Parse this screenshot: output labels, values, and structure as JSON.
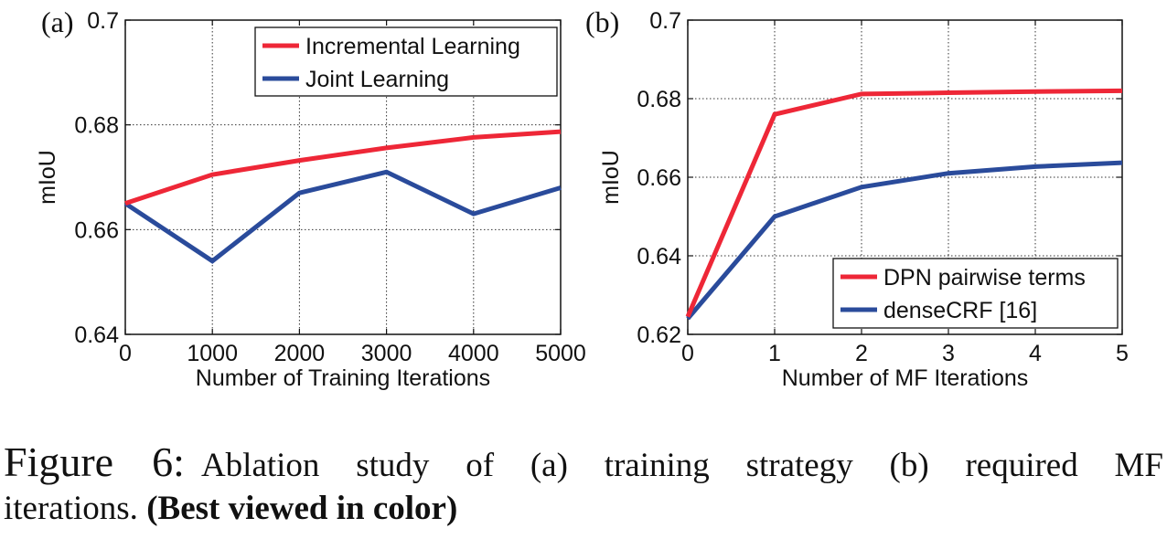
{
  "chart_data": [
    {
      "panel_label": "(a)",
      "type": "line",
      "xlabel": "Number of Training Iterations",
      "ylabel": "mIoU",
      "x": [
        0,
        1000,
        2000,
        3000,
        4000,
        5000
      ],
      "xlim": [
        0,
        5000
      ],
      "ylim": [
        0.64,
        0.7
      ],
      "xticks": [
        "0",
        "1000",
        "2000",
        "3000",
        "4000",
        "5000"
      ],
      "yticks": [
        "0.64",
        "0.66",
        "0.68",
        "0.7"
      ],
      "grid": true,
      "legend_position": "top-right",
      "series": [
        {
          "name": "Incremental Learning",
          "color": "#ee2737",
          "values": [
            0.665,
            0.6705,
            0.6732,
            0.6756,
            0.6776,
            0.6787
          ]
        },
        {
          "name": "Joint Learning",
          "color": "#2a4b9b",
          "values": [
            0.665,
            0.654,
            0.667,
            0.671,
            0.663,
            0.668
          ]
        }
      ]
    },
    {
      "panel_label": "(b)",
      "type": "line",
      "xlabel": "Number of MF Iterations",
      "ylabel": "mIoU",
      "x": [
        0,
        1,
        2,
        3,
        4,
        5
      ],
      "xlim": [
        0,
        5
      ],
      "ylim": [
        0.62,
        0.7
      ],
      "xticks": [
        "0",
        "1",
        "2",
        "3",
        "4",
        "5"
      ],
      "yticks": [
        "0.62",
        "0.64",
        "0.66",
        "0.68",
        "0.7"
      ],
      "grid": true,
      "legend_position": "bottom-right",
      "series": [
        {
          "name": "DPN pairwise terms",
          "color": "#ee2737",
          "values": [
            0.6245,
            0.676,
            0.6812,
            0.6815,
            0.6818,
            0.682
          ]
        },
        {
          "name": "denseCRF [16]",
          "color": "#2a4b9b",
          "values": [
            0.624,
            0.65,
            0.6575,
            0.661,
            0.6627,
            0.6637
          ]
        }
      ]
    }
  ],
  "caption": {
    "label": "Figure 6:",
    "text": "Ablation study of (a) training strategy (b) required MF",
    "text_line2": "iterations.",
    "bold": "(Best viewed in color)"
  }
}
